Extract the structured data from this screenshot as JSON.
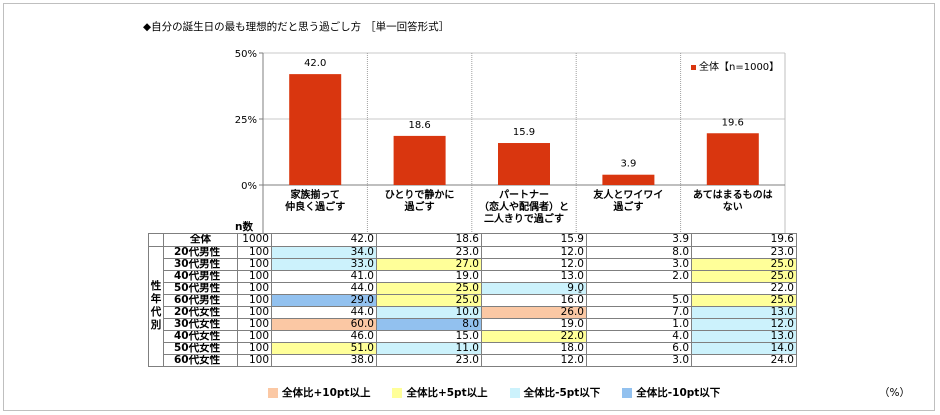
{
  "title": "◆自分の誕生日の最も理想的だと思う過ごし方",
  "title_format": "［単一回答形式］",
  "colors": {
    "bar": "#d9360f",
    "high10": "#fbc8a4",
    "high5": "#ffff99",
    "low5": "#ccf2fc",
    "low10": "#92c1ef"
  },
  "chart_data": {
    "type": "bar",
    "categories": [
      "家族揃って\n仲良く過ごす",
      "ひとりで静かに\n過ごす",
      "パートナー\n（恋人や配偶者）と\n二人きりで過ごす",
      "友人とワイワイ\n過ごす",
      "あてはまるものは\nない"
    ],
    "series": [
      {
        "name": "全体【n=1000】",
        "values": [
          42.0,
          18.6,
          15.9,
          3.9,
          19.6
        ]
      }
    ],
    "value_labels": [
      "42.0",
      "18.6",
      "15.9",
      "3.9",
      "19.6"
    ],
    "yticks": [
      "50%",
      "25%",
      "0%"
    ],
    "ylim": [
      0,
      50
    ],
    "legend_position": "top-right"
  },
  "table": {
    "n_header": "n数",
    "group_label": "性年代別",
    "total": {
      "label": "全体",
      "n": "1000",
      "values": [
        "42.0",
        "18.6",
        "15.9",
        "3.9",
        "19.6"
      ]
    },
    "rows": [
      {
        "label": "20代男性",
        "n": "100",
        "values": [
          "34.0",
          "23.0",
          "12.0",
          "8.0",
          "23.0"
        ],
        "hl": [
          "low5",
          "",
          "",
          "",
          ""
        ]
      },
      {
        "label": "30代男性",
        "n": "100",
        "values": [
          "33.0",
          "27.0",
          "12.0",
          "3.0",
          "25.0"
        ],
        "hl": [
          "low5",
          "high5",
          "",
          "",
          "high5"
        ]
      },
      {
        "label": "40代男性",
        "n": "100",
        "values": [
          "41.0",
          "19.0",
          "13.0",
          "2.0",
          "25.0"
        ],
        "hl": [
          "",
          "",
          "",
          "",
          "high5"
        ]
      },
      {
        "label": "50代男性",
        "n": "100",
        "values": [
          "44.0",
          "25.0",
          "9.0",
          "",
          "22.0"
        ],
        "hl": [
          "",
          "high5",
          "low5",
          "",
          ""
        ]
      },
      {
        "label": "60代男性",
        "n": "100",
        "values": [
          "29.0",
          "25.0",
          "16.0",
          "5.0",
          "25.0"
        ],
        "hl": [
          "low10",
          "high5",
          "",
          "",
          "high5"
        ]
      },
      {
        "label": "20代女性",
        "n": "100",
        "values": [
          "44.0",
          "10.0",
          "26.0",
          "7.0",
          "13.0"
        ],
        "hl": [
          "",
          "low5",
          "high10",
          "",
          "low5"
        ]
      },
      {
        "label": "30代女性",
        "n": "100",
        "values": [
          "60.0",
          "8.0",
          "19.0",
          "1.0",
          "12.0"
        ],
        "hl": [
          "high10",
          "low10",
          "",
          "",
          "low5"
        ]
      },
      {
        "label": "40代女性",
        "n": "100",
        "values": [
          "46.0",
          "15.0",
          "22.0",
          "4.0",
          "13.0"
        ],
        "hl": [
          "",
          "",
          "high5",
          "",
          "low5"
        ]
      },
      {
        "label": "50代女性",
        "n": "100",
        "values": [
          "51.0",
          "11.0",
          "18.0",
          "6.0",
          "14.0"
        ],
        "hl": [
          "high5",
          "low5",
          "",
          "",
          "low5"
        ]
      },
      {
        "label": "60代女性",
        "n": "100",
        "values": [
          "38.0",
          "23.0",
          "12.0",
          "3.0",
          "24.0"
        ],
        "hl": [
          "",
          "",
          "",
          "",
          ""
        ]
      }
    ],
    "dash_mark": "-"
  },
  "legend": [
    {
      "key": "high10",
      "label": "全体比+10pt以上"
    },
    {
      "key": "high5",
      "label": "全体比+5pt以上"
    },
    {
      "key": "low5",
      "label": "全体比-5pt以下"
    },
    {
      "key": "low10",
      "label": "全体比-10pt以下"
    }
  ],
  "unit": "（%）"
}
